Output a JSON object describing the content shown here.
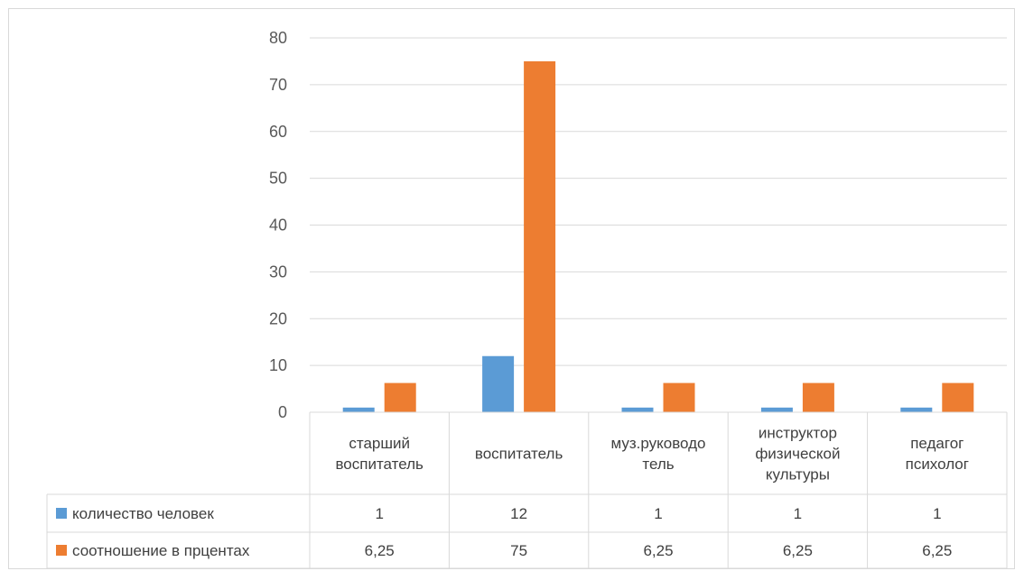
{
  "chart_data": {
    "type": "bar",
    "categories": [
      [
        "старший",
        "воспитатель"
      ],
      [
        "воспитатель"
      ],
      [
        "муз.руководо",
        "тель"
      ],
      [
        "инструктор",
        "физической",
        "культуры"
      ],
      [
        "педагог",
        "психолог"
      ]
    ],
    "series": [
      {
        "name": "количество человек",
        "color": "#5b9bd5",
        "values": [
          1,
          12,
          1,
          1,
          1
        ],
        "labels": [
          "1",
          "12",
          "1",
          "1",
          "1"
        ]
      },
      {
        "name": "соотношение в прцентах",
        "color": "#ed7d31",
        "values": [
          6.25,
          75,
          6.25,
          6.25,
          6.25
        ],
        "labels": [
          "6,25",
          "75",
          "6,25",
          "6,25",
          "6,25"
        ]
      }
    ],
    "ylim": [
      0,
      80
    ],
    "yticks": [
      0,
      10,
      20,
      30,
      40,
      50,
      60,
      70,
      80
    ],
    "grid": true,
    "legend": "data-table"
  }
}
